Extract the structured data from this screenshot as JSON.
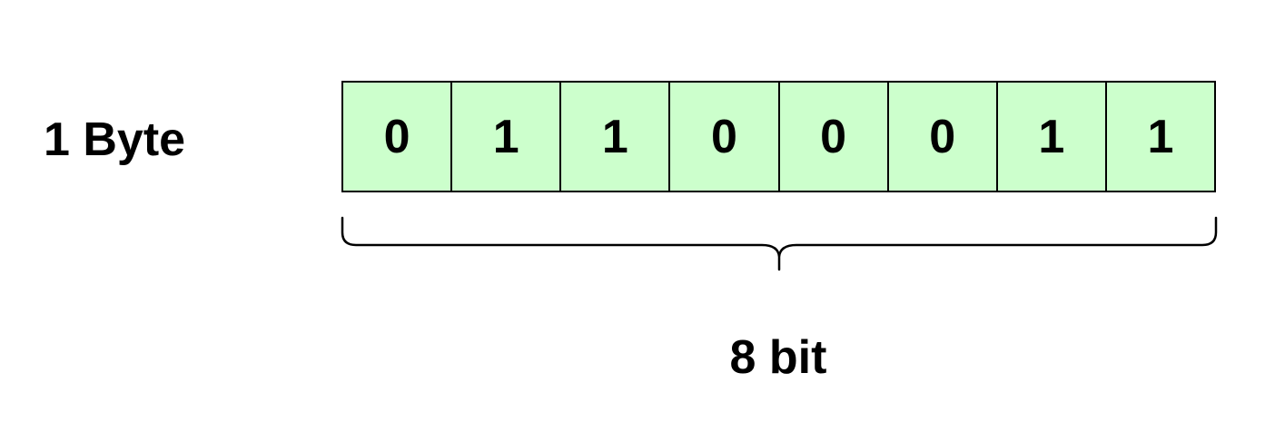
{
  "diagram": {
    "byte_label": "1 Byte",
    "bits": [
      "0",
      "1",
      "1",
      "0",
      "0",
      "0",
      "1",
      "1"
    ],
    "bit_count_label": "8 bit",
    "colors": {
      "cell_fill": "#ccffcc",
      "stroke": "#000000",
      "text": "#000000",
      "background": "#ffffff"
    }
  }
}
